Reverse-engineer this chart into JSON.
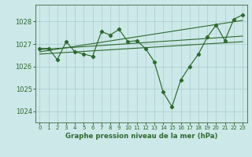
{
  "title": "Graphe pression niveau de la mer (hPa)",
  "bg_color": "#cce8e8",
  "grid_color": "#aacccc",
  "line_color": "#2d6a2d",
  "xlim": [
    -0.5,
    23.5
  ],
  "ylim": [
    1023.5,
    1028.75
  ],
  "yticks": [
    1024,
    1025,
    1026,
    1027,
    1028
  ],
  "xticks": [
    0,
    1,
    2,
    3,
    4,
    5,
    6,
    7,
    8,
    9,
    10,
    11,
    12,
    13,
    14,
    15,
    16,
    17,
    18,
    19,
    20,
    21,
    22,
    23
  ],
  "series1_x": [
    0,
    1,
    2,
    3,
    4,
    5,
    6,
    7,
    8,
    9,
    10,
    11,
    12,
    13,
    14,
    15,
    16,
    17,
    18,
    19,
    20,
    21,
    22,
    23
  ],
  "series1_y": [
    1026.8,
    1026.8,
    1026.3,
    1027.1,
    1026.65,
    1026.55,
    1026.45,
    1027.55,
    1027.4,
    1027.65,
    1027.1,
    1027.15,
    1026.8,
    1026.2,
    1024.85,
    1024.2,
    1025.4,
    1026.0,
    1026.55,
    1027.3,
    1027.85,
    1027.15,
    1028.1,
    1028.3
  ],
  "series2_x": [
    0,
    23
  ],
  "series2_y": [
    1026.65,
    1028.05
  ],
  "series3_x": [
    0,
    23
  ],
  "series3_y": [
    1026.75,
    1027.35
  ],
  "series4_x": [
    0,
    23
  ],
  "series4_y": [
    1026.55,
    1027.1
  ]
}
